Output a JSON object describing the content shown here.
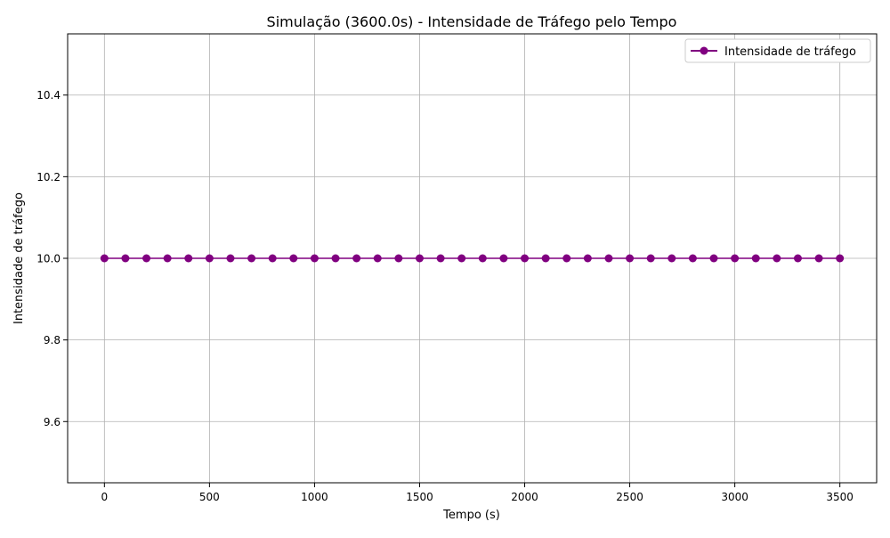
{
  "chart_data": {
    "type": "line",
    "title": "Simulação (3600.0s) - Intensidade de Tráfego pelo Tempo",
    "xlabel": "Tempo (s)",
    "ylabel": "Intensidade de tráfego",
    "xlim": [
      -175,
      3675
    ],
    "ylim": [
      9.45,
      10.55
    ],
    "xticks": [
      0,
      500,
      1000,
      1500,
      2000,
      2500,
      3000,
      3500
    ],
    "xtick_labels": [
      "0",
      "500",
      "1000",
      "1500",
      "2000",
      "2500",
      "3000",
      "3500"
    ],
    "yticks": [
      9.6,
      9.8,
      10.0,
      10.2,
      10.4
    ],
    "ytick_labels": [
      "9.6",
      "9.8",
      "10.0",
      "10.2",
      "10.4"
    ],
    "grid": true,
    "legend_position": "top-right",
    "series": [
      {
        "name": "Intensidade de tráfego",
        "color": "#800080",
        "marker": "circle",
        "x": [
          0,
          100,
          200,
          300,
          400,
          500,
          600,
          700,
          800,
          900,
          1000,
          1100,
          1200,
          1300,
          1400,
          1500,
          1600,
          1700,
          1800,
          1900,
          2000,
          2100,
          2200,
          2300,
          2400,
          2500,
          2600,
          2700,
          2800,
          2900,
          3000,
          3100,
          3200,
          3300,
          3400,
          3500
        ],
        "y": [
          10,
          10,
          10,
          10,
          10,
          10,
          10,
          10,
          10,
          10,
          10,
          10,
          10,
          10,
          10,
          10,
          10,
          10,
          10,
          10,
          10,
          10,
          10,
          10,
          10,
          10,
          10,
          10,
          10,
          10,
          10,
          10,
          10,
          10,
          10,
          10
        ]
      }
    ]
  }
}
